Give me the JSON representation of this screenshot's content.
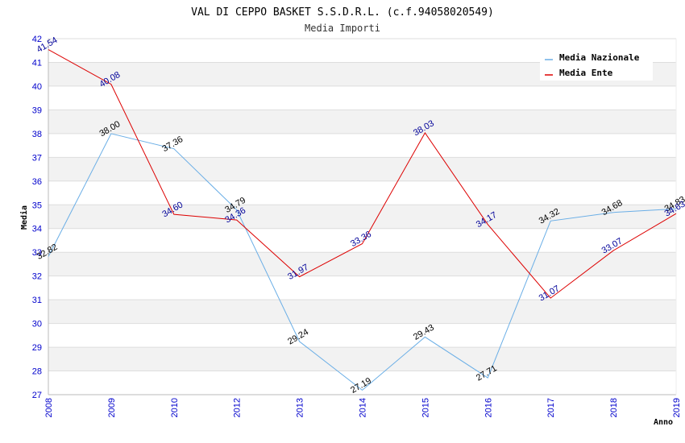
{
  "chart_data": {
    "type": "line",
    "title": "VAL DI CEPPO BASKET S.S.D.R.L. (c.f.94058020549)",
    "subtitle": "Media Importi",
    "xlabel": "Anno",
    "ylabel": "Media",
    "ylim": [
      27,
      42
    ],
    "yticks": [
      27,
      28,
      29,
      30,
      31,
      32,
      33,
      34,
      35,
      36,
      37,
      38,
      39,
      40,
      41,
      42
    ],
    "x": [
      "2008",
      "2009",
      "2010",
      "2012",
      "2013",
      "2014",
      "2015",
      "2016",
      "2017",
      "2018",
      "2019"
    ],
    "grid": true,
    "legend_position": "top-right",
    "series": [
      {
        "name": "Media Nazionale",
        "color": "#6aaee6",
        "values": [
          32.82,
          38.0,
          37.36,
          34.79,
          29.24,
          27.19,
          29.43,
          27.71,
          34.32,
          34.68,
          34.83
        ],
        "labels": [
          "32.82",
          "38.00",
          "37.36",
          "34.79",
          "29.24",
          "27.19",
          "29.43",
          "27.71",
          "34.32",
          "34.68",
          "34.83"
        ]
      },
      {
        "name": "Media Ente",
        "color": "#dd0000",
        "values": [
          41.54,
          40.08,
          34.6,
          34.36,
          31.97,
          33.36,
          38.03,
          34.17,
          31.07,
          33.07,
          34.63
        ],
        "labels": [
          "41.54",
          "40.08",
          "34.60",
          "34.36",
          "31.97",
          "33.36",
          "38.03",
          "34.17",
          "31.07",
          "33.07",
          "34.63"
        ]
      }
    ]
  }
}
